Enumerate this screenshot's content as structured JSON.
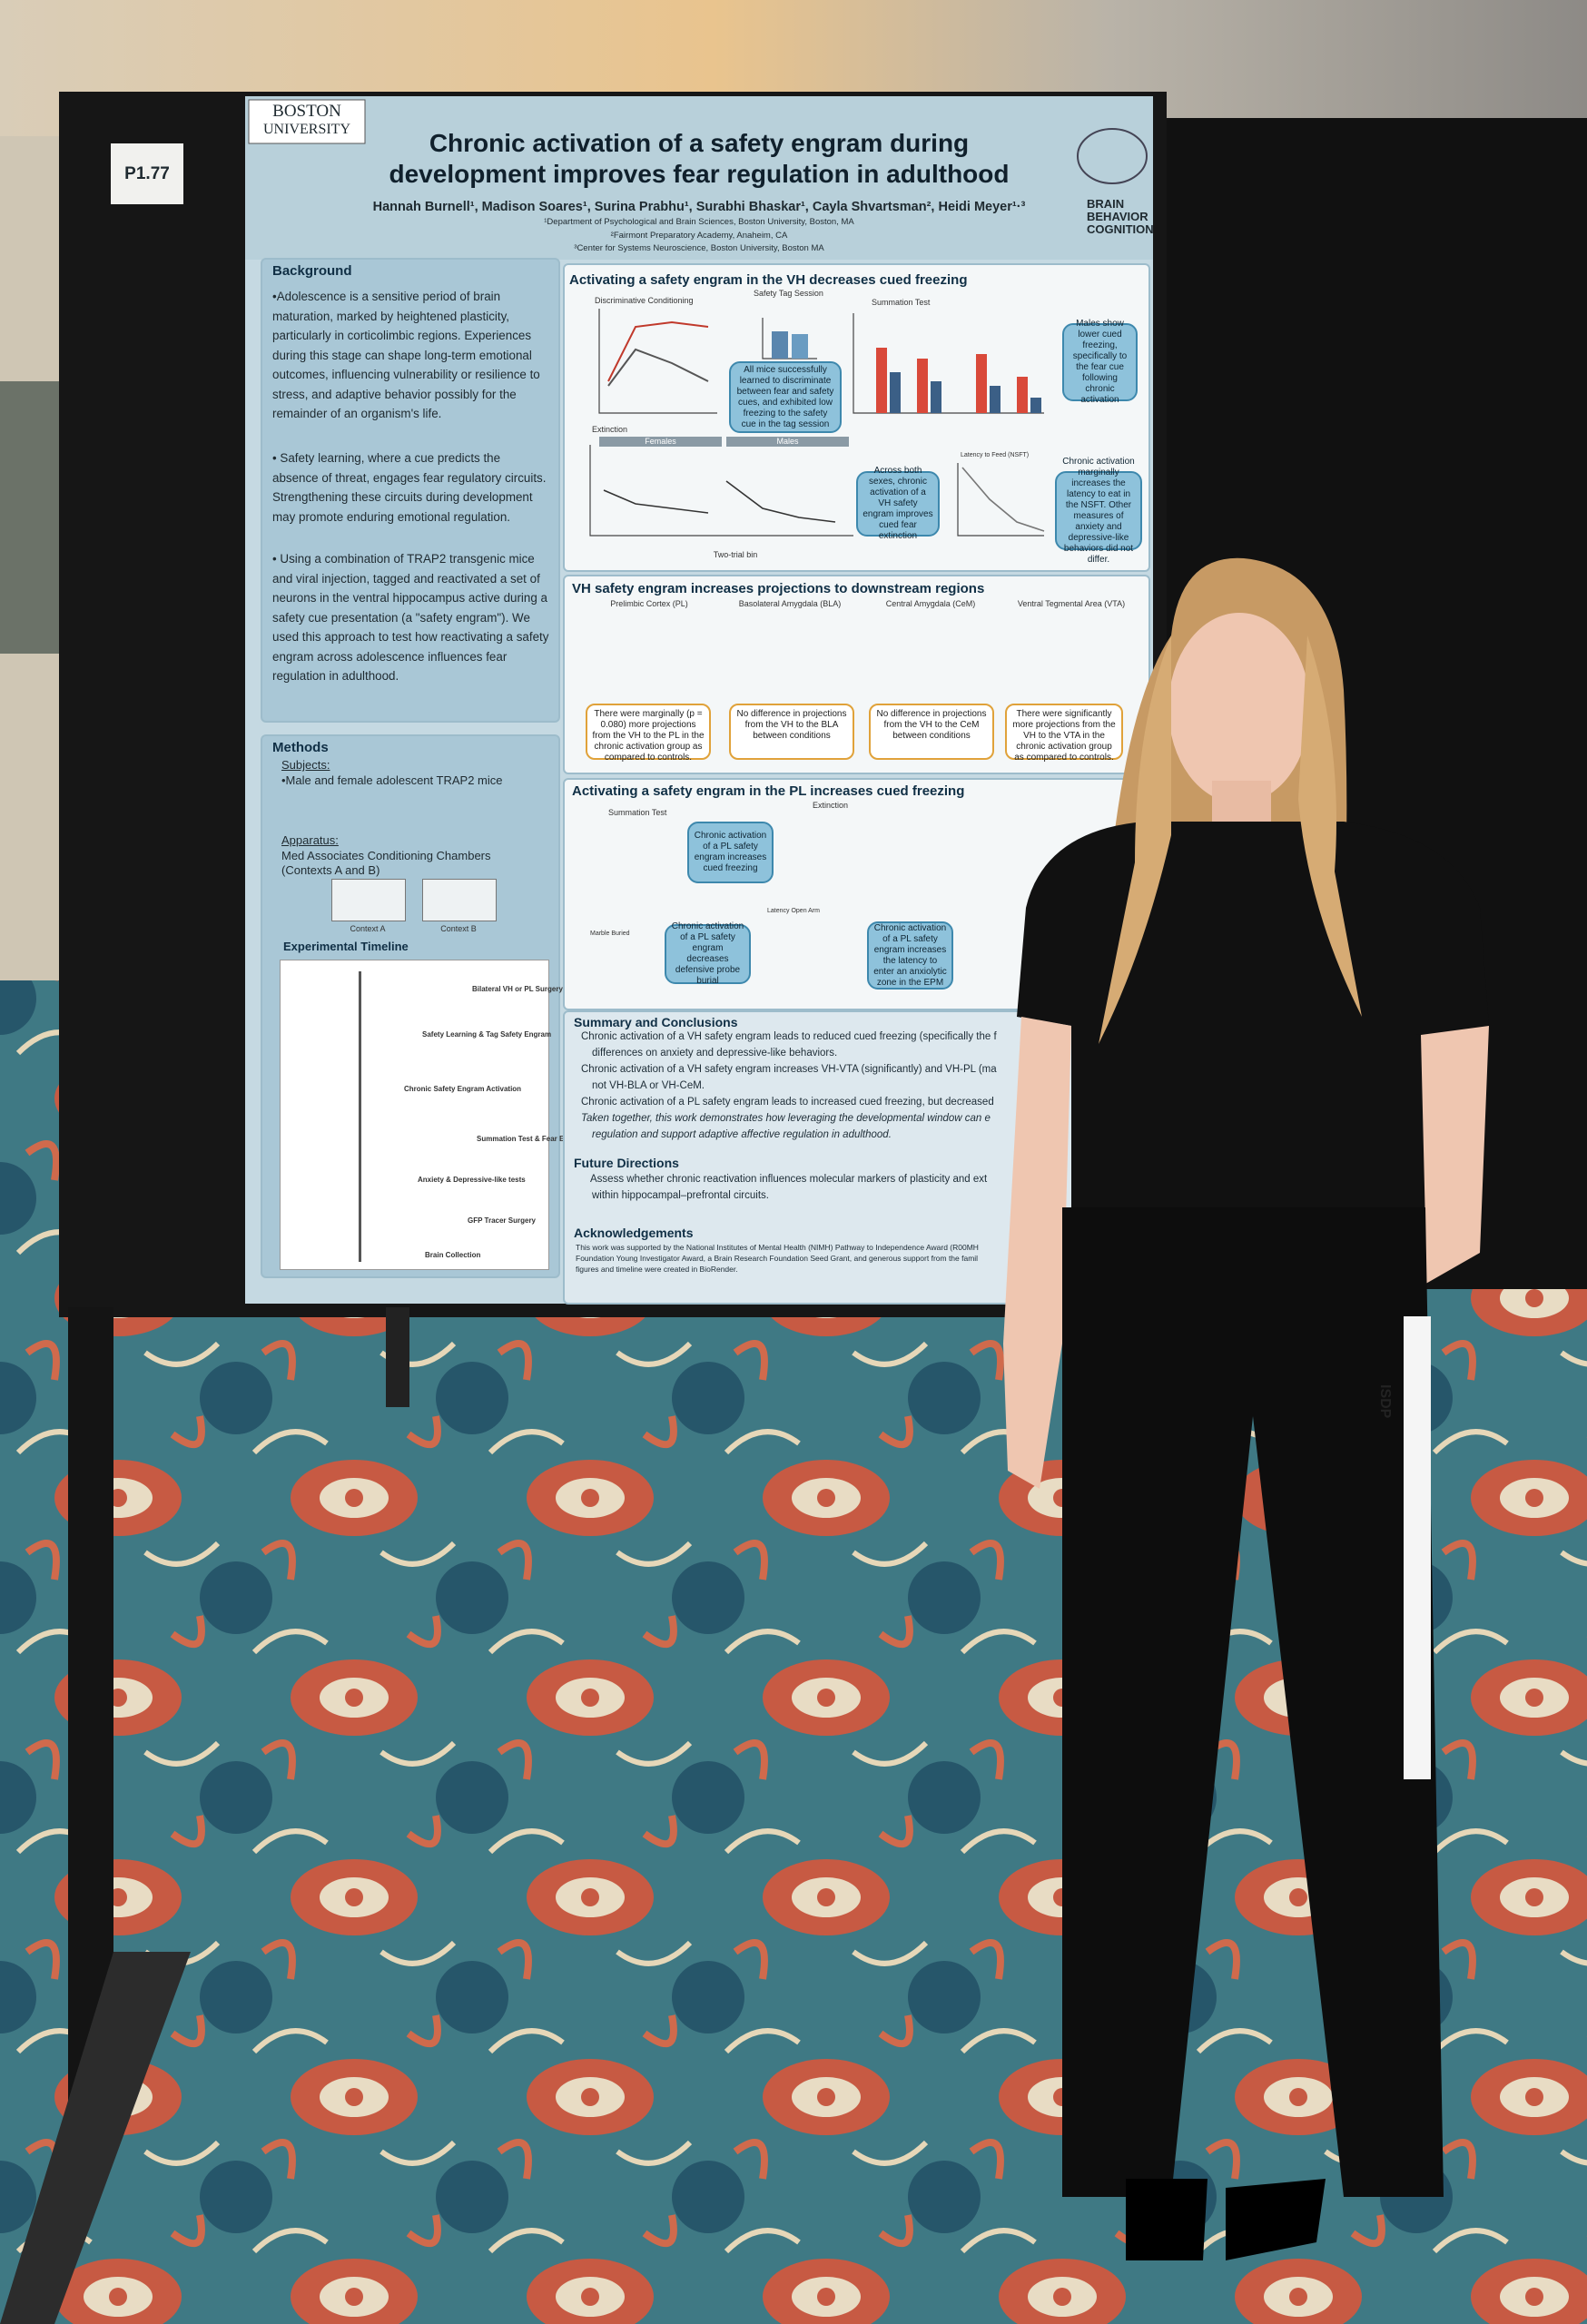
{
  "board_label": "P1.77",
  "badge": "ISDP",
  "poster": {
    "logo": [
      "BOSTON",
      "UNIVERSITY"
    ],
    "title": [
      "Chronic activation of a safety engram during",
      "development improves fear regulation in adulthood"
    ],
    "authors": "Hannah Burnell¹, Madison Soares¹, Surina Prabhu¹, Surabhi Bhaskar¹, Cayla Shvartsman², Heidi Meyer¹·³",
    "affiliations": [
      "¹Department of Psychological and Brain Sciences, Boston University, Boston, MA",
      "²Fairmont Preparatory Academy, Anaheim, CA",
      "³Center for Systems Neuroscience, Boston University, Boston MA"
    ],
    "brand": [
      "BRAIN",
      "BEHAVIOR",
      "COGNITION"
    ]
  },
  "background": {
    "heading": "Background",
    "paragraphs": [
      "•Adolescence is a sensitive period of brain maturation, marked by heightened plasticity, particularly in corticolimbic regions. Experiences during this stage can shape long-term emotional outcomes, influencing vulnerability or resilience to stress, and adaptive behavior possibly for the remainder of an organism's life.",
      "• Safety learning, where a cue predicts the absence of threat, engages fear regulatory circuits. Strengthening these circuits during development may promote enduring emotional regulation.",
      "• Using a combination of TRAP2 transgenic mice and viral injection, tagged and reactivated a set of neurons in the ventral hippocampus active during a safety cue presentation (a \"safety engram\"). We used this approach to test how reactivating a safety engram across adolescence influences fear regulation in adulthood."
    ]
  },
  "methods": {
    "heading": "Methods",
    "subjects_label": "Subjects:",
    "subjects": "•Male and female adolescent TRAP2 mice",
    "apparatus_label": "Apparatus:",
    "apparatus": "Med Associates Conditioning Chambers (Contexts A and B)",
    "contexts": [
      "Context A",
      "Context B"
    ],
    "timeline_heading": "Experimental Timeline",
    "timeline": [
      "Bilateral VH or PL Surgery",
      "Safety Learning & Tag Safety Engram",
      "Chronic Safety Engram Activation",
      "Summation Test & Fear Extinction",
      "Anxiety & Depressive-like tests",
      "GFP Tracer Surgery",
      "Brain Collection"
    ]
  },
  "vh_behavior": {
    "heading": "Activating a safety engram in the VH decreases cued freezing",
    "panels": [
      "Discriminative Conditioning",
      "Safety Tag Session",
      "Summation Test",
      "Extinction",
      "Latency to Feed (NSFT)"
    ],
    "sexes": [
      "Females",
      "Males"
    ],
    "x_label": "Two-trial bin",
    "callouts": [
      "All mice successfully learned to discriminate between fear and safety cues, and exhibited low freezing to the safety cue in the tag session",
      "Males show lower cued freezing, specifically to the fear cue following chronic activation",
      "Across both sexes, chronic activation of a VH safety engram improves cued fear extinction",
      "Chronic activation marginally increases the latency to eat in the NSFT. Other measures of anxiety and depressive-like behaviors did not differ."
    ]
  },
  "projections": {
    "heading": "VH safety engram increases projections to downstream regions",
    "regions": [
      "Prelimbic Cortex (PL)",
      "Basolateral Amygdala (BLA)",
      "Central Amygdala (CeM)",
      "Ventral Tegmental Area (VTA)"
    ],
    "notes": [
      "There were marginally (p = 0.080) more projections from the VH to the PL in the chronic activation group as compared to controls.",
      "No difference in projections from the VH to the BLA between conditions",
      "No difference in projections from the VH to the CeM between conditions",
      "There were significantly more projections from the VH to the VTA in the chronic activation group as compared to controls."
    ]
  },
  "pl_behavior": {
    "heading": "Activating a safety engram in the PL increases cued freezing",
    "panels": [
      "Summation Test",
      "Extinction",
      "Marble Buried",
      "Latency Open Arm"
    ],
    "callouts": [
      "Chronic activation of a PL safety engram increases cued freezing",
      "Chronic activation of a PL safety engram decreases defensive probe burial",
      "Chronic activation of a PL safety engram increases the latency to enter an anxiolytic zone in the EPM"
    ]
  },
  "summary": {
    "heading": "Summary and Conclusions",
    "lines": [
      "Chronic activation of a VH safety engram leads to reduced cued freezing (specifically the f",
      "differences on anxiety and depressive-like behaviors.",
      "Chronic activation of a VH safety engram increases VH-VTA (significantly) and VH-PL (ma",
      "not VH-BLA or VH-CeM.",
      "Chronic activation of a PL safety engram leads to increased cued freezing, but decreased",
      "Taken together, this work demonstrates how leveraging the developmental window can e",
      "regulation and support adaptive affective regulation in adulthood."
    ]
  },
  "future": {
    "heading": "Future Directions",
    "lines": [
      "Assess whether chronic reactivation influences molecular markers of plasticity and ext",
      "within hippocampal–prefrontal circuits."
    ]
  },
  "acknowledgements": {
    "heading": "Acknowledgements",
    "lines": [
      "This work was supported by the National Institutes of Mental Health (NIMH) Pathway to Independence Award (R00MH",
      "Foundation Young Investigator Award, a Brain Research Foundation Seed Grant, and generous support from the famil",
      "figures and timeline were created in BioRender."
    ]
  }
}
